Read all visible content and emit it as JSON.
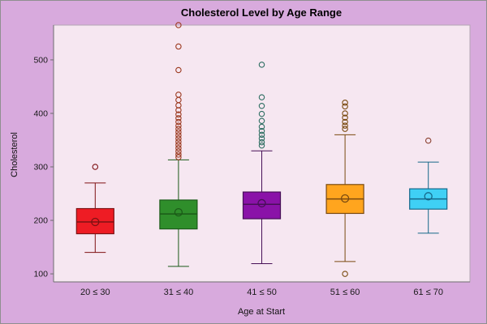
{
  "colors": {
    "outer_bg": "#d8aadd",
    "plot_bg": "#f6e7f1",
    "frame": "#b3a7b3",
    "axis_line": "#6e6e6e",
    "tick_text": "#1a1a1a",
    "page_border": "#8f8f8f"
  },
  "chart_data": {
    "type": "box",
    "title": "Cholesterol Level by Age Range",
    "xlabel": "Age at Start",
    "ylabel": "Cholesterol",
    "categories": [
      "20 ≤ 30",
      "31 ≤ 40",
      "41 ≤ 50",
      "51 ≤ 60",
      "61 ≤ 70"
    ],
    "yticks": [
      100,
      200,
      300,
      400,
      500
    ],
    "ylim": [
      85,
      565
    ],
    "grid": false,
    "legend": "none",
    "series": [
      {
        "label": "20 ≤ 30",
        "fill": "#ee1c24",
        "stroke": "#7f1113",
        "marker": "#7f1113",
        "q1": 175,
        "median": 197,
        "q3": 222,
        "whisker_low": 140,
        "whisker_high": 270,
        "mean": 197,
        "outliers": [
          300
        ]
      },
      {
        "label": "31 ≤ 40",
        "fill": "#2f8e2b",
        "stroke": "#1b5a18",
        "marker": "#9c3a20",
        "q1": 184,
        "median": 212,
        "q3": 238,
        "whisker_low": 114,
        "whisker_high": 313,
        "mean": 215,
        "outliers": [
          565,
          525,
          481,
          435,
          425,
          415,
          406,
          398,
          391,
          384,
          377,
          371,
          365,
          359,
          353,
          347,
          341,
          335,
          329,
          323,
          318
        ]
      },
      {
        "label": "41 ≤ 50",
        "fill": "#8a12a8",
        "stroke": "#471057",
        "marker": "#2e6e62",
        "q1": 203,
        "median": 230,
        "q3": 253,
        "whisker_low": 119,
        "whisker_high": 330,
        "mean": 232,
        "outliers": [
          491,
          430,
          414,
          399,
          386,
          375,
          367,
          360,
          353,
          346,
          340
        ]
      },
      {
        "label": "51 ≤ 60",
        "fill": "#ffa51e",
        "stroke": "#7a4a10",
        "marker": "#7a4a10",
        "q1": 213,
        "median": 240,
        "q3": 267,
        "whisker_low": 123,
        "whisker_high": 360,
        "mean": 241,
        "outliers": [
          420,
          413,
          400,
          392,
          384,
          377,
          371,
          100
        ]
      },
      {
        "label": "61 ≤ 70",
        "fill": "#3fd0f5",
        "stroke": "#16688a",
        "marker": "#8a4030",
        "q1": 221,
        "median": 240,
        "q3": 259,
        "whisker_low": 176,
        "whisker_high": 309,
        "mean": 245,
        "outliers": [
          349
        ]
      }
    ]
  }
}
